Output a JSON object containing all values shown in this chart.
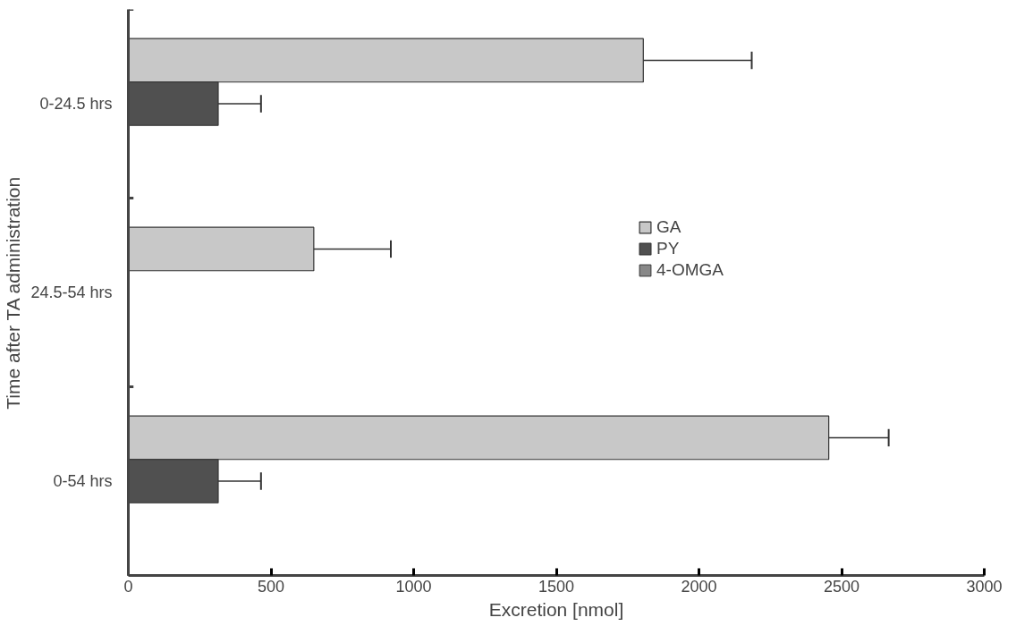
{
  "chart_data": {
    "type": "bar",
    "orientation": "horizontal",
    "xlabel": "Excretion [nmol]",
    "ylabel": "Time after TA administration",
    "categories": [
      "0-24.5 hrs",
      "24.5-54 hrs",
      "0-54 hrs"
    ],
    "series": [
      {
        "name": "GA",
        "color": "#c8c8c8",
        "values": [
          1805,
          650,
          2455
        ],
        "errors": [
          380,
          270,
          210
        ]
      },
      {
        "name": "PY",
        "color": "#505050",
        "values": [
          315,
          null,
          315
        ],
        "errors": [
          150,
          null,
          150
        ]
      },
      {
        "name": "4-OMGA",
        "color": "#888888",
        "values": [
          null,
          null,
          null
        ]
      }
    ],
    "xlim": [
      0,
      3000
    ],
    "xticks": [
      0,
      500,
      1000,
      1500,
      2000,
      2500,
      3000
    ],
    "grid": false,
    "legend": "right"
  }
}
